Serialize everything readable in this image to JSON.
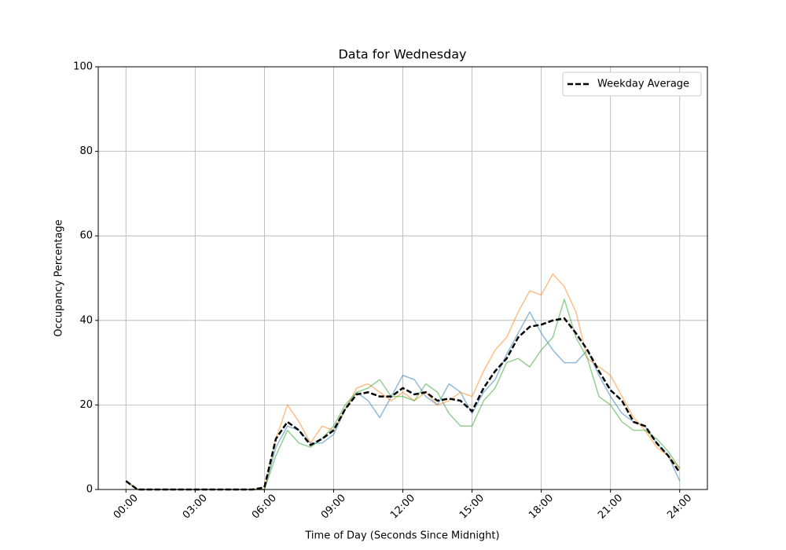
{
  "chart_data": {
    "type": "line",
    "title": "Data for Wednesday",
    "x_label": "Time of Day (Seconds Since Midnight)",
    "y_label": "Occupancy Percentage",
    "x": [
      0,
      1800,
      3600,
      5400,
      7200,
      9000,
      10800,
      12600,
      14400,
      16200,
      18000,
      19800,
      21600,
      23400,
      25200,
      27000,
      28800,
      30600,
      32400,
      34200,
      36000,
      37800,
      39600,
      41400,
      43200,
      45000,
      46800,
      48600,
      50400,
      52200,
      54000,
      55800,
      57600,
      59400,
      61200,
      63000,
      64800,
      66600,
      68400,
      70200,
      72000,
      73800,
      75600,
      77400,
      79200,
      81000,
      82800,
      84600,
      86400
    ],
    "series": [
      {
        "color": "#1f77b4",
        "alpha": 0.5,
        "width": 1.5,
        "dashed": false,
        "values": [
          2,
          0,
          0,
          0,
          0,
          0,
          0,
          0,
          0,
          0,
          0,
          0,
          0,
          10,
          15,
          14,
          11,
          11,
          13,
          19,
          23,
          21,
          17,
          22,
          27,
          26,
          22,
          20,
          25,
          23,
          18,
          23,
          26,
          32,
          37,
          42,
          37,
          33,
          30,
          30,
          33,
          27,
          22,
          18,
          16,
          15,
          11,
          8,
          2
        ]
      },
      {
        "color": "#ff7f0e",
        "alpha": 0.5,
        "width": 1.5,
        "dashed": false,
        "values": [
          2,
          0,
          0,
          0,
          0,
          0,
          0,
          0,
          0,
          0,
          0,
          0,
          0,
          12,
          20,
          16,
          11,
          15,
          14,
          19,
          24,
          25,
          23,
          21,
          23,
          21,
          23,
          20,
          21,
          23,
          22,
          28,
          33,
          36,
          42,
          47,
          46,
          51,
          48,
          42,
          31,
          29,
          27,
          22,
          17,
          14,
          10,
          8,
          5
        ]
      },
      {
        "color": "#2ca02c",
        "alpha": 0.5,
        "width": 1.5,
        "dashed": false,
        "values": [
          2,
          0,
          0,
          0,
          0,
          0,
          0,
          0,
          0,
          0,
          0,
          0,
          0,
          8,
          14,
          11,
          10,
          12,
          15,
          20,
          23,
          24,
          26,
          22,
          22,
          21,
          25,
          23,
          18,
          15,
          15,
          21,
          24,
          30,
          31,
          29,
          33,
          36,
          45,
          36,
          31,
          22,
          20,
          16,
          14,
          14,
          12,
          9,
          5
        ]
      },
      {
        "name": "Weekday Average",
        "color": "#000000",
        "alpha": 1,
        "width": 2.5,
        "dashed": true,
        "values": [
          2,
          0,
          0,
          0,
          0,
          0,
          0,
          0,
          0,
          0,
          0,
          0,
          0.5,
          12,
          16,
          14,
          10.5,
          12,
          14,
          19,
          22.5,
          23,
          22,
          22,
          24,
          22.5,
          23,
          21,
          21.5,
          21,
          18.5,
          24,
          28,
          31,
          36,
          38.5,
          39,
          40,
          40.5,
          37,
          33,
          28,
          23.5,
          21,
          16,
          15,
          11,
          8,
          4
        ]
      }
    ],
    "xlim": [
      -4320,
      90720
    ],
    "ylim": [
      0,
      100
    ],
    "xticks": [
      {
        "value": 0,
        "label": "00:00"
      },
      {
        "value": 10800,
        "label": "03:00"
      },
      {
        "value": 21600,
        "label": "06:00"
      },
      {
        "value": 32400,
        "label": "09:00"
      },
      {
        "value": 43200,
        "label": "12:00"
      },
      {
        "value": 54000,
        "label": "15:00"
      },
      {
        "value": 64800,
        "label": "18:00"
      },
      {
        "value": 75600,
        "label": "21:00"
      },
      {
        "value": 86400,
        "label": "24:00"
      }
    ],
    "yticks": [
      0,
      20,
      40,
      60,
      80,
      100
    ],
    "grid": true,
    "legend": "upper right"
  }
}
